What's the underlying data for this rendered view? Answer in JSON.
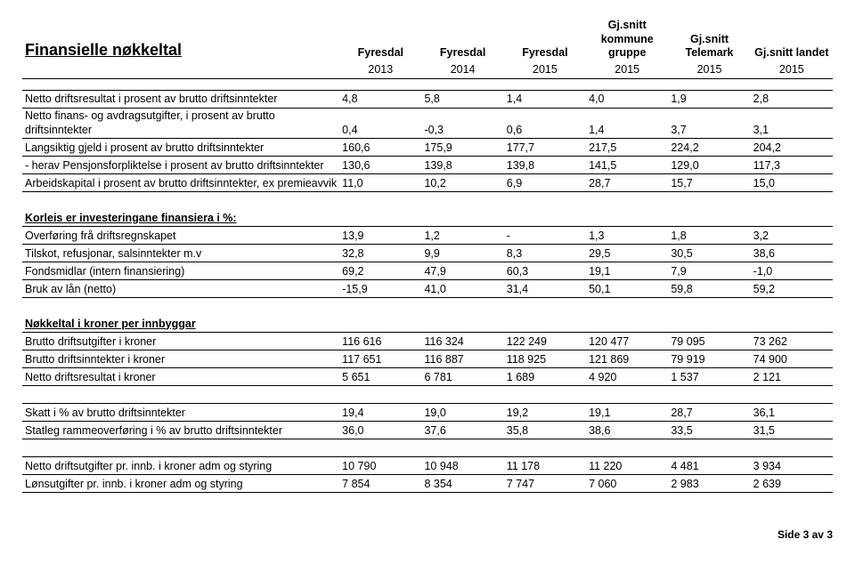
{
  "title": "Finansielle nøkkeltal",
  "columns": {
    "c1": "Fyresdal",
    "c2": "Fyresdal",
    "c3": "Fyresdal",
    "c4": "Gj.snitt kommune gruppe",
    "c5": "Gj.snitt Telemark",
    "c6": "Gj.snitt landet"
  },
  "years": {
    "c1": "2013",
    "c2": "2014",
    "c3": "2015",
    "c4": "2015",
    "c5": "2015",
    "c6": "2015"
  },
  "rows": [
    {
      "label": "Netto driftsresultat i prosent av brutto driftsinntekter",
      "v": [
        "4,8",
        "5,8",
        "1,4",
        "4,0",
        "1,9",
        "2,8"
      ]
    },
    {
      "label": "Netto finans- og avdragsutgifter, i prosent av brutto driftsinntekter",
      "v": [
        "0,4",
        "-0,3",
        "0,6",
        "1,4",
        "3,7",
        "3,1"
      ]
    },
    {
      "label": "Langsiktig gjeld i prosent av brutto driftsinntekter",
      "v": [
        "160,6",
        "175,9",
        "177,7",
        "217,5",
        "224,2",
        "204,2"
      ]
    },
    {
      "label": "- herav Pensjonsforpliktelse i prosent av brutto driftsinntekter",
      "v": [
        "130,6",
        "139,8",
        "139,8",
        "141,5",
        "129,0",
        "117,3"
      ]
    },
    {
      "label": "Arbeidskapital i prosent av brutto driftsinntekter, ex premieavvik",
      "v": [
        "11,0",
        "10,2",
        "6,9",
        "28,7",
        "15,7",
        "15,0"
      ]
    }
  ],
  "section2": "Korleis er investeringane finansiera i %:",
  "rows2": [
    {
      "label": "Overføring frå driftsregnskapet",
      "v": [
        "13,9",
        "1,2",
        "-",
        "1,3",
        "1,8",
        "3,2"
      ]
    },
    {
      "label": "Tilskot, refusjonar, salsinntekter m.v",
      "v": [
        "32,8",
        "9,9",
        "8,3",
        "29,5",
        "30,5",
        "38,6"
      ]
    },
    {
      "label": "Fondsmidlar (intern finansiering)",
      "v": [
        "69,2",
        "47,9",
        "60,3",
        "19,1",
        "7,9",
        "-1,0"
      ]
    },
    {
      "label": "Bruk av lån (netto)",
      "v": [
        "-15,9",
        "41,0",
        "31,4",
        "50,1",
        "59,8",
        "59,2"
      ]
    }
  ],
  "section3": "Nøkkeltal i kroner per innbyggar",
  "rows3": [
    {
      "label": "Brutto driftsutgifter i kroner",
      "v": [
        "116 616",
        "116 324",
        "122 249",
        "120 477",
        "79 095",
        "73 262"
      ]
    },
    {
      "label": "Brutto driftsinntekter i kroner",
      "v": [
        "117 651",
        "116 887",
        "118 925",
        "121 869",
        "79 919",
        "74 900"
      ]
    },
    {
      "label": "Netto driftsresultat i kroner",
      "v": [
        "5 651",
        "6 781",
        "1 689",
        "4 920",
        "1 537",
        "2 121"
      ]
    }
  ],
  "rows4": [
    {
      "label": "Skatt i % av brutto driftsinntekter",
      "v": [
        "19,4",
        "19,0",
        "19,2",
        "19,1",
        "28,7",
        "36,1"
      ]
    },
    {
      "label": "Statleg rammeoverføring i % av brutto driftsinntekter",
      "v": [
        "36,0",
        "37,6",
        "35,8",
        "38,6",
        "33,5",
        "31,5"
      ]
    }
  ],
  "rows5": [
    {
      "label": "Netto driftsutgifter pr. innb. i kroner adm og styring",
      "v": [
        "10 790",
        "10 948",
        "11 178",
        "11 220",
        "4 481",
        "3 934"
      ]
    },
    {
      "label": "Lønsutgifter pr. innb. i kroner adm og styring",
      "v": [
        "7 854",
        "8 354",
        "7 747",
        "7 060",
        "2 983",
        "2 639"
      ]
    }
  ],
  "footer": "Side 3 av 3"
}
